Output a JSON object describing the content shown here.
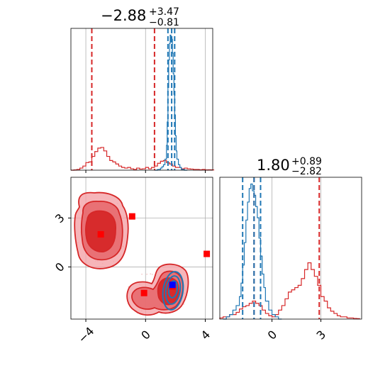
{
  "colors": {
    "red": "#d62728",
    "blue": "#1f77b4",
    "pure_red": "#ff0000",
    "pure_blue": "#0000ff",
    "grid": "#b0b0b0"
  },
  "chart_data": [
    {
      "type": "area",
      "panel": "marginal-x",
      "title_value": "−2.88",
      "title_plus": "+3.47",
      "title_minus": "−0.81",
      "xlim": [
        -5,
        4.5
      ],
      "grid_x": [
        -4,
        0,
        4
      ],
      "dashed_red": [
        -3.6,
        0.6
      ],
      "dashed_blue": [
        1.5,
        1.75,
        1.95
      ],
      "series": [
        {
          "color": "red",
          "x": [
            -5.0,
            -4.8,
            -4.6,
            -4.4,
            -4.2,
            -4.0,
            -3.8,
            -3.6,
            -3.4,
            -3.2,
            -3.0,
            -2.8,
            -2.6,
            -2.4,
            -2.2,
            -2.0,
            -1.8,
            -1.6,
            -1.4,
            -1.2,
            -1.0,
            -0.8,
            -0.6,
            -0.4,
            -0.2,
            0.0,
            0.2,
            0.4,
            0.6,
            0.8,
            1.0,
            1.2,
            1.4,
            1.6,
            1.8,
            2.0,
            2.2,
            2.4,
            2.6,
            2.8,
            3.0,
            3.2,
            3.4,
            3.6,
            3.8,
            4.0,
            4.2,
            4.4
          ],
          "values": [
            0,
            0.2,
            0.5,
            1.5,
            3.0,
            5.5,
            6.0,
            10.0,
            13.5,
            16.0,
            16.5,
            14.0,
            10.0,
            7.0,
            6.0,
            4.5,
            3.0,
            2.0,
            1.5,
            2.0,
            1.0,
            0.5,
            1.5,
            0.8,
            1.0,
            2.0,
            1.0,
            2.0,
            3.0,
            5.0,
            6.5,
            7.0,
            5.5,
            4.5,
            3.0,
            2.0,
            2.0,
            1.0,
            1.5,
            1.0,
            0.8,
            0.5,
            0.5,
            0.3,
            0.5,
            0.2,
            0.3,
            0.2
          ]
        },
        {
          "color": "blue",
          "x": [
            0.6,
            0.8,
            1.0,
            1.1,
            1.2,
            1.3,
            1.4,
            1.45,
            1.5,
            1.55,
            1.6,
            1.65,
            1.7,
            1.75,
            1.8,
            1.85,
            1.9,
            1.95,
            2.0,
            2.05,
            2.1,
            2.2,
            2.3,
            2.4,
            2.6
          ],
          "values": [
            0,
            0.5,
            1.5,
            2.5,
            4.0,
            8.0,
            18.0,
            35.0,
            60.0,
            80.0,
            92.0,
            98.0,
            93.0,
            95.0,
            85.0,
            70.0,
            55.0,
            40.0,
            25.0,
            14.0,
            8.0,
            4.0,
            2.0,
            0.5,
            0
          ]
        }
      ]
    },
    {
      "type": "scatter",
      "panel": "joint",
      "xlim": [
        -5,
        4.5
      ],
      "ylim": [
        -3.2,
        5.5
      ],
      "x_ticks": [
        "−4",
        "0",
        "4"
      ],
      "x_tick_values": [
        -4,
        0,
        4
      ],
      "y_ticks": [
        "0",
        "3"
      ],
      "y_tick_values": [
        0,
        3
      ],
      "red_markers": [
        {
          "x": -3.0,
          "y": 2.0
        },
        {
          "x": -0.9,
          "y": 3.1
        },
        {
          "x": -0.1,
          "y": -1.6
        },
        {
          "x": 4.1,
          "y": 0.8
        },
        {
          "x": 1.8,
          "y": -1.2
        }
      ],
      "blue_markers": [
        {
          "x": 1.8,
          "y": -1.1
        }
      ]
    },
    {
      "type": "area",
      "panel": "marginal-y",
      "title_value": "1.80",
      "title_plus": "+0.89",
      "title_minus": "−2.82",
      "xlim": [
        -3.2,
        5.5
      ],
      "x_ticks": [
        "0",
        "3"
      ],
      "x_tick_values": [
        0,
        3
      ],
      "grid_x": [
        0,
        3
      ],
      "dashed_red": [
        -1.1,
        2.9
      ],
      "dashed_blue": [
        -1.8,
        -1.1,
        -0.7
      ],
      "series": [
        {
          "color": "red",
          "x": [
            -3.2,
            -3.0,
            -2.8,
            -2.6,
            -2.4,
            -2.2,
            -2.0,
            -1.8,
            -1.6,
            -1.4,
            -1.2,
            -1.0,
            -0.8,
            -0.6,
            -0.4,
            -0.2,
            0.0,
            0.2,
            0.4,
            0.6,
            0.8,
            1.0,
            1.2,
            1.4,
            1.6,
            1.8,
            2.0,
            2.2,
            2.4,
            2.6,
            2.8,
            3.0,
            3.2,
            3.4,
            3.6,
            3.8,
            4.0,
            4.2,
            4.4,
            4.6,
            4.8,
            5.0,
            5.2
          ],
          "values": [
            0.5,
            1.0,
            1.0,
            2.0,
            2.0,
            3.0,
            4.5,
            5.5,
            6.0,
            7.0,
            8.0,
            7.0,
            6.0,
            4.0,
            2.5,
            1.5,
            1.0,
            2.0,
            4.0,
            6.0,
            9.0,
            12.0,
            13.0,
            14.0,
            15.0,
            18.0,
            22.0,
            25.0,
            22.0,
            19.0,
            15.0,
            10.0,
            8.0,
            5.0,
            3.5,
            2.5,
            1.5,
            1.0,
            1.0,
            0.5,
            0.5,
            0.3,
            0.2
          ]
        },
        {
          "color": "blue",
          "x": [
            -3.0,
            -2.8,
            -2.6,
            -2.4,
            -2.2,
            -2.0,
            -1.9,
            -1.8,
            -1.7,
            -1.6,
            -1.5,
            -1.4,
            -1.3,
            -1.2,
            -1.1,
            -1.0,
            -0.9,
            -0.8,
            -0.7,
            -0.6,
            -0.5,
            -0.4,
            -0.2,
            0.0,
            0.2,
            0.4
          ],
          "values": [
            0,
            1.0,
            2.0,
            4.0,
            6.0,
            10.0,
            16.0,
            24.0,
            34.0,
            44.0,
            52.0,
            58.0,
            60.0,
            57.0,
            55.0,
            50.0,
            45.0,
            36.0,
            28.0,
            20.0,
            14.0,
            8.0,
            4.0,
            2.0,
            1.0,
            0
          ]
        }
      ]
    }
  ]
}
